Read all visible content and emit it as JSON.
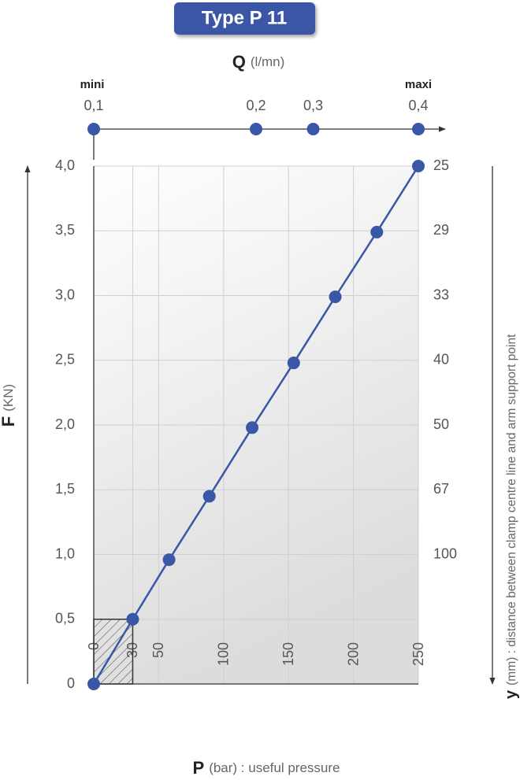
{
  "chart_data": {
    "type": "line",
    "title": "Type P 11",
    "x_label": "P",
    "x_unit": "(bar) : useful pressure",
    "y_label": "F",
    "y_unit": "(KN)",
    "xlim": [
      0,
      250
    ],
    "xticks": [
      0,
      30,
      50,
      100,
      150,
      200,
      250
    ],
    "ylim": [
      0,
      4
    ],
    "yticks": [
      0,
      {
        "value": 0.5,
        "label": "0,5"
      },
      {
        "value": 1,
        "label": "1,0"
      },
      {
        "value": 1.5,
        "label": "1,5"
      },
      {
        "value": 2,
        "label": "2,0"
      },
      {
        "value": 2.5,
        "label": "2,5"
      },
      {
        "value": 3,
        "label": "3,0"
      },
      {
        "value": 3.5,
        "label": "3,5"
      },
      {
        "value": 4,
        "label": "4,0"
      }
    ],
    "grid": true,
    "series": [
      {
        "color": "#3a56a6",
        "x": [
          0,
          30,
          58,
          89,
          122,
          154,
          186,
          218,
          250
        ],
        "values": [
          0,
          0.5,
          0.96,
          1.45,
          1.98,
          2.48,
          2.99,
          3.49,
          4.0
        ]
      }
    ],
    "q_axis": {
      "label": "Q",
      "unit": "(l/mn)",
      "min_label": "mini",
      "max_label": "maxi",
      "ticks": [
        {
          "value": 0.1,
          "label": "0,1"
        },
        {
          "value": 0.2,
          "label": "0,2"
        },
        {
          "value": 0.3,
          "label": "0,3"
        },
        {
          "value": 0.4,
          "label": "0,4"
        }
      ],
      "p_values": [
        0,
        125,
        169,
        250
      ]
    },
    "y2_axis": {
      "label": "y",
      "unit": "(mm) : distance between clamp centre line and arm support point",
      "ticks": [
        25,
        29,
        33,
        40,
        50,
        67,
        100
      ],
      "f_values": [
        4.0,
        3.5,
        3.0,
        2.5,
        2.0,
        1.5,
        1.0
      ]
    }
  }
}
